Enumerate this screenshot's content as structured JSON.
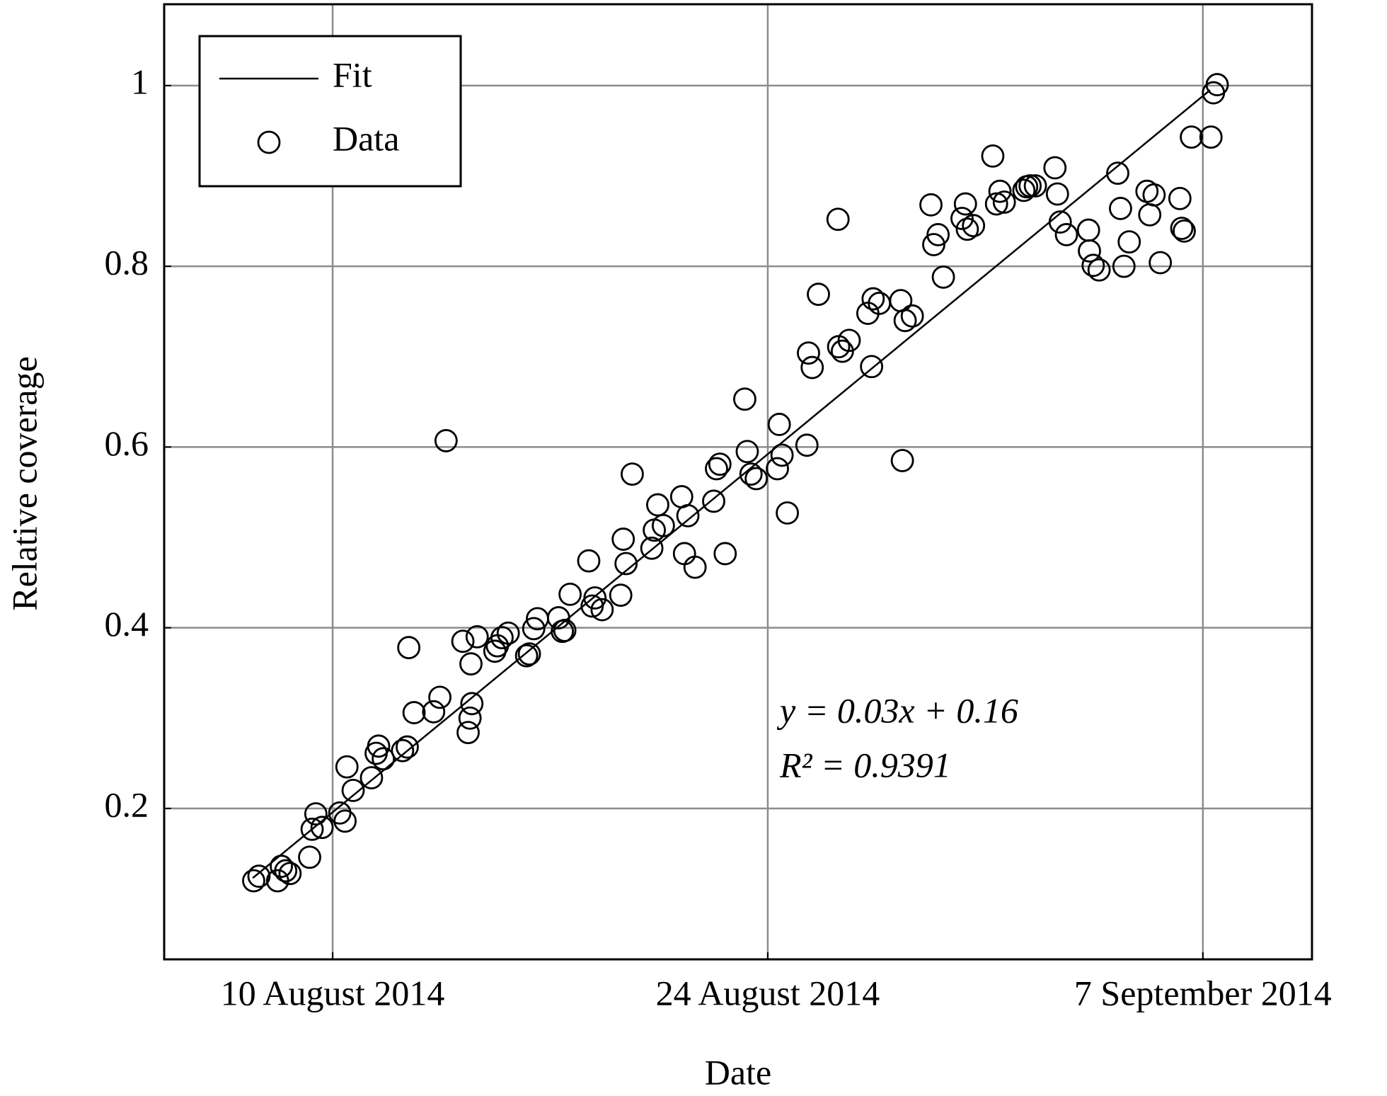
{
  "chart_data": {
    "type": "scatter",
    "xlabel": "Date",
    "ylabel": "Relative coverage",
    "annotations": [
      "y = 0.03x + 0.16",
      "R² = 0.9391"
    ],
    "xlim": [
      -2.42,
      34.51
    ],
    "xticks": [
      {
        "value": 3,
        "label": "10 August 2014"
      },
      {
        "value": 17,
        "label": "24 August 2014"
      },
      {
        "value": 31,
        "label": "7 September 2014"
      }
    ],
    "ylim": [
      0.033,
      1.09
    ],
    "yticks": [
      0.2,
      0.4,
      0.6,
      0.8,
      1
    ],
    "grid": true,
    "legend": "upper left",
    "series": [
      {
        "name": "Fit",
        "kind": "line",
        "color": "#000000",
        "x": [
          0.43,
          31.23
        ],
        "values": [
          0.123,
          0.995
        ]
      },
      {
        "name": "Data",
        "kind": "scatter",
        "color": "#000000",
        "x": [
          0.46,
          0.63,
          1.23,
          1.35,
          1.49,
          1.63,
          2.26,
          2.34,
          2.46,
          2.66,
          3.23,
          3.4,
          3.46,
          3.66,
          4.25,
          4.4,
          4.48,
          4.63,
          5.25,
          5.4,
          5.45,
          5.62,
          6.25,
          6.45,
          6.65,
          7.36,
          7.42,
          7.48,
          7.19,
          7.45,
          7.65,
          8.22,
          8.3,
          8.45,
          8.65,
          9.24,
          9.33,
          9.47,
          9.59,
          10.27,
          10.39,
          10.47,
          10.64,
          11.24,
          11.35,
          11.44,
          11.67,
          12.27,
          12.35,
          12.44,
          12.64,
          13.27,
          13.35,
          13.46,
          13.64,
          14.23,
          14.32,
          14.43,
          14.66,
          15.26,
          15.35,
          15.46,
          15.63,
          16.26,
          16.34,
          16.46,
          16.63,
          17.31,
          17.37,
          17.46,
          17.63,
          18.26,
          18.31,
          18.43,
          18.63,
          19.26,
          19.28,
          19.4,
          19.62,
          20.22,
          20.34,
          20.39,
          20.59,
          21.28,
          21.33,
          21.42,
          21.65,
          22.25,
          22.34,
          22.48,
          22.65,
          23.25,
          23.36,
          23.42,
          23.62,
          24.24,
          24.36,
          24.47,
          24.61,
          25.24,
          25.33,
          25.44,
          25.61,
          26.24,
          26.32,
          26.41,
          26.61,
          27.32,
          27.35,
          27.47,
          27.66,
          28.26,
          28.35,
          28.46,
          28.63,
          29.2,
          29.29,
          29.43,
          29.63,
          30.26,
          30.32,
          30.4,
          30.63,
          31.26,
          31.34,
          31.46
        ],
        "values": [
          0.12,
          0.125,
          0.12,
          0.136,
          0.131,
          0.128,
          0.146,
          0.177,
          0.194,
          0.179,
          0.195,
          0.186,
          0.246,
          0.22,
          0.234,
          0.261,
          0.269,
          0.255,
          0.264,
          0.268,
          0.378,
          0.306,
          0.307,
          0.323,
          0.607,
          0.284,
          0.3,
          0.316,
          0.385,
          0.36,
          0.39,
          0.374,
          0.38,
          0.389,
          0.394,
          0.369,
          0.371,
          0.399,
          0.41,
          0.411,
          0.396,
          0.397,
          0.437,
          0.474,
          0.424,
          0.433,
          0.42,
          0.436,
          0.498,
          0.471,
          0.57,
          0.488,
          0.508,
          0.536,
          0.513,
          0.545,
          0.482,
          0.524,
          0.467,
          0.54,
          0.576,
          0.581,
          0.482,
          0.653,
          0.595,
          0.57,
          0.565,
          0.576,
          0.625,
          0.591,
          0.527,
          0.602,
          0.704,
          0.688,
          0.769,
          0.852,
          0.711,
          0.706,
          0.718,
          0.748,
          0.689,
          0.764,
          0.759,
          0.762,
          0.585,
          0.74,
          0.745,
          0.868,
          0.824,
          0.835,
          0.788,
          0.853,
          0.869,
          0.841,
          0.845,
          0.922,
          0.869,
          0.883,
          0.871,
          0.884,
          0.888,
          0.889,
          0.889,
          0.909,
          0.88,
          0.849,
          0.835,
          0.84,
          0.817,
          0.801,
          0.796,
          0.903,
          0.864,
          0.8,
          0.827,
          0.883,
          0.857,
          0.879,
          0.804,
          0.875,
          0.842,
          0.839,
          0.943,
          0.943,
          0.992,
          1.001
        ]
      }
    ]
  }
}
